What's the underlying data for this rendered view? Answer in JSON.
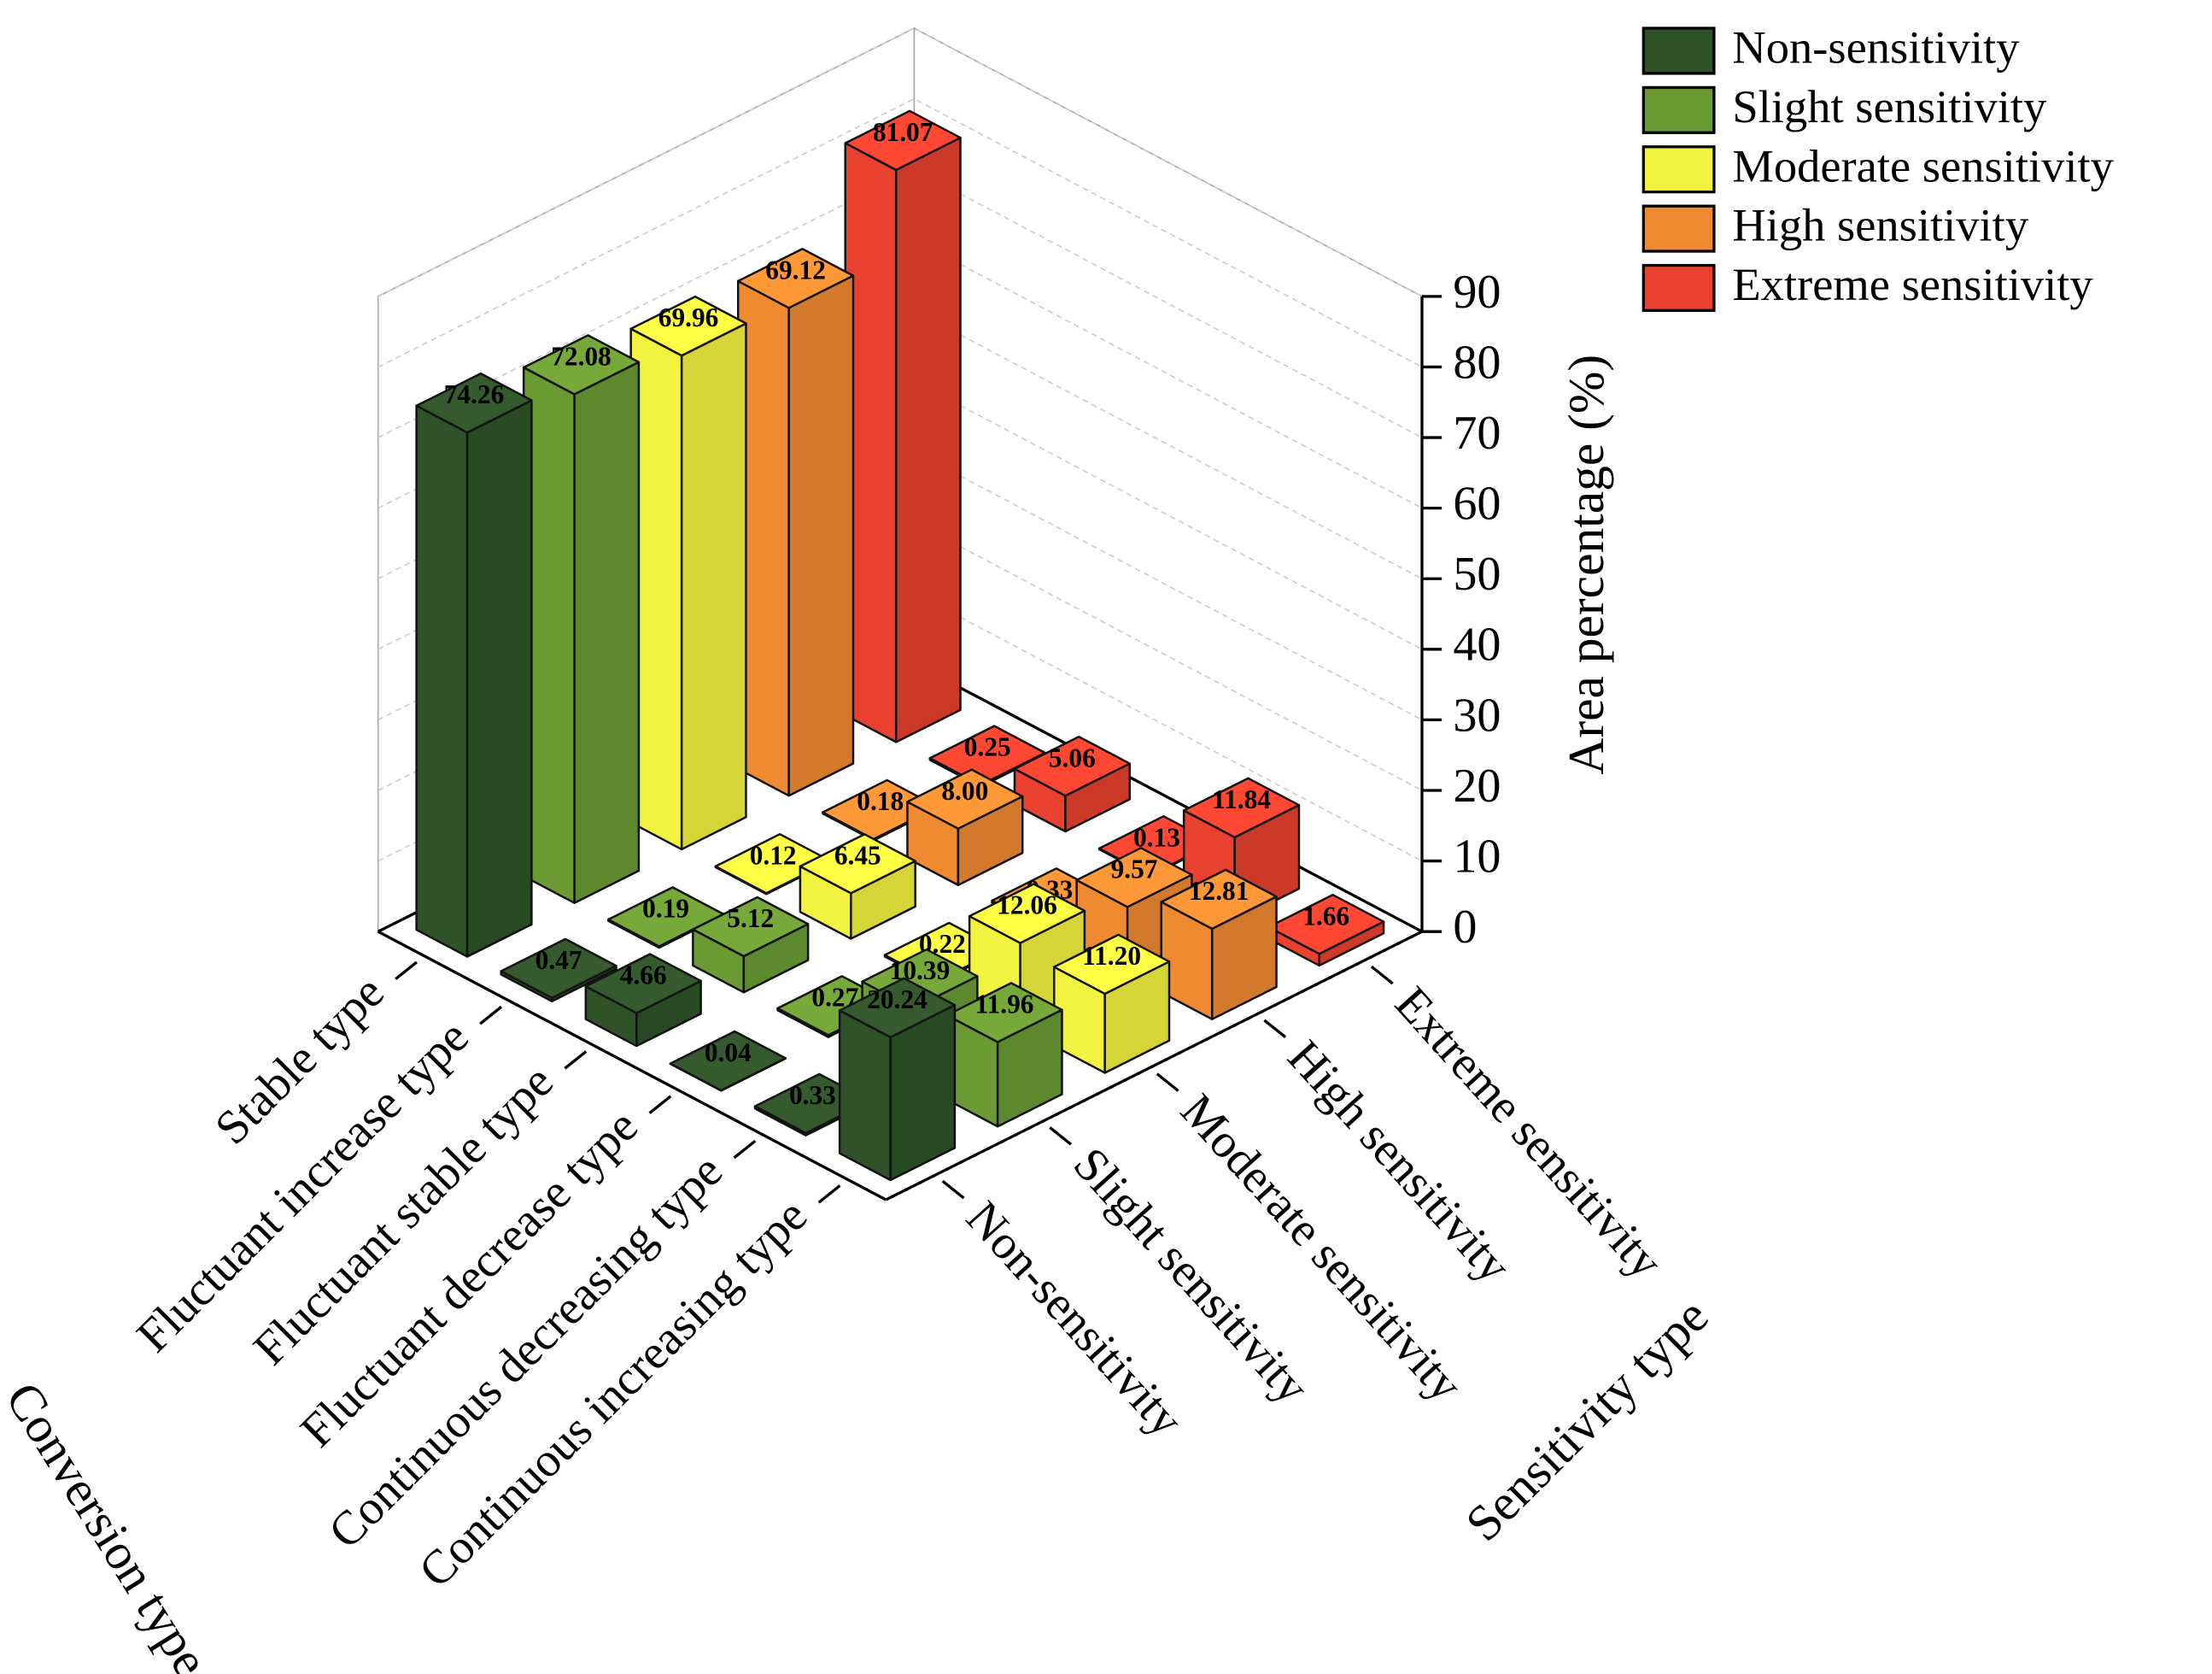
{
  "chart_data": {
    "type": "bar3d",
    "categories": [
      "Stable type",
      "Fluctuant increase type",
      "Fluctuant stable type",
      "Fluctuant decrease type",
      "Continuous decreasing type",
      "Continuous increasing type"
    ],
    "columns": [
      "Non-sensitivity",
      "Slight sensitivity",
      "Moderate sensitivity",
      "High sensitivity",
      "Extreme sensitivity"
    ],
    "series": [
      {
        "name": "Non-sensitivity",
        "color": "#2f5229",
        "values": [
          74.26,
          0.47,
          4.66,
          0.04,
          0.33,
          20.24
        ],
        "value_labels": [
          "74.26",
          "0.47",
          "4.66",
          "0.04",
          "0.33",
          "20.24"
        ]
      },
      {
        "name": "Slight sensitivity",
        "color": "#6b9a34",
        "values": [
          72.08,
          0.19,
          5.12,
          0.27,
          10.39,
          11.96
        ],
        "value_labels": [
          "72.08",
          "0.19",
          "5.12",
          "0.27",
          "10.39",
          "11.96"
        ]
      },
      {
        "name": "Moderate sensitivity",
        "color": "#f2f240",
        "values": [
          69.96,
          0.12,
          6.45,
          0.22,
          12.06,
          11.2
        ],
        "value_labels": [
          "69.96",
          "0.12",
          "6.45",
          "0.22",
          "12.06",
          "11.20"
        ]
      },
      {
        "name": "High sensitivity",
        "color": "#f08a32",
        "values": [
          69.12,
          0.18,
          8.0,
          0.33,
          9.57,
          12.81
        ],
        "value_labels": [
          "69.12",
          "0.18",
          "8.00",
          "0.33",
          "9.57",
          "12.81"
        ]
      },
      {
        "name": "Extreme sensitivity",
        "color": "#e8412f",
        "values": [
          81.07,
          0.25,
          5.06,
          0.13,
          11.84,
          1.66
        ],
        "value_labels": [
          "81.07",
          "0.25",
          "5.06",
          "0.13",
          "11.84",
          "1.66"
        ]
      }
    ],
    "zlim": [
      0,
      90
    ],
    "zticks": [
      0,
      10,
      20,
      30,
      40,
      50,
      60,
      70,
      80,
      90
    ],
    "z_label": "Area percentage (%)",
    "x_label": "Conversion type",
    "y_label": "Sensitivity type",
    "legend": "upper right",
    "grid": true
  }
}
